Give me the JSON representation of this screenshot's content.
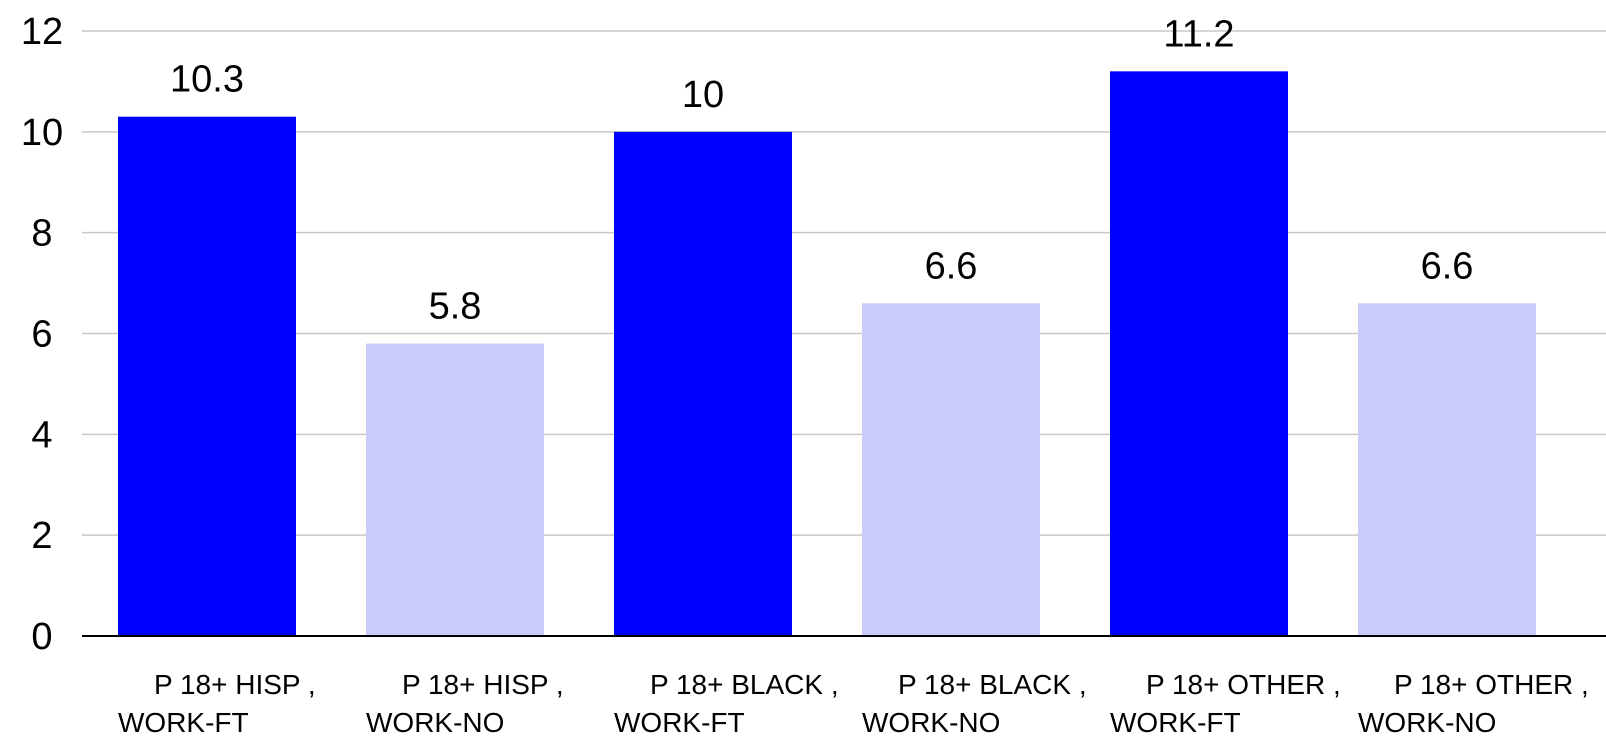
{
  "chart_data": {
    "type": "bar",
    "categories": [
      [
        "P 18+ HISP ,",
        "WORK-FT"
      ],
      [
        "P 18+ HISP ,",
        "WORK-NO"
      ],
      [
        "P 18+ BLACK ,",
        "WORK-FT"
      ],
      [
        "P 18+ BLACK ,",
        "WORK-NO"
      ],
      [
        "P 18+ OTHER ,",
        "WORK-FT"
      ],
      [
        "P 18+ OTHER ,",
        "WORK-NO"
      ]
    ],
    "values": [
      10.3,
      5.8,
      10,
      6.6,
      11.2,
      6.6
    ],
    "value_labels": [
      "10.3",
      "5.8",
      "10",
      "6.6",
      "11.2",
      "6.6"
    ],
    "bar_colors": [
      "#0000ff",
      "#ccccfa",
      "#0000ff",
      "#ccccfa",
      "#0000ff",
      "#ccccfa"
    ],
    "ylim": [
      0,
      12
    ],
    "yticks": [
      0,
      2,
      4,
      6,
      8,
      10,
      12
    ],
    "grid": true,
    "title": "",
    "xlabel": "",
    "ylabel": "",
    "legend": "none"
  }
}
